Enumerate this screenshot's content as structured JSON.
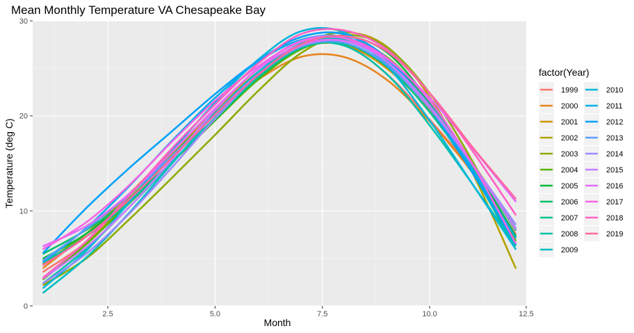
{
  "chart_data": {
    "type": "line",
    "title": "Mean Monthly Temperature VA Chesapeake Bay",
    "xlabel": "Month",
    "ylabel": "Temperature (deg C)",
    "xlim": [
      0.75,
      12.25
    ],
    "ylim": [
      0,
      30
    ],
    "x_ticks": [
      2.5,
      5.0,
      7.5,
      10.0,
      12.5
    ],
    "x_tick_labels": [
      "2.5",
      "5.0",
      "7.5",
      "10.0",
      "12.5"
    ],
    "y_ticks": [
      0,
      10,
      20,
      30
    ],
    "y_tick_labels": [
      "0",
      "10",
      "20",
      "30"
    ],
    "grid": true,
    "smoothed": true,
    "legend_title": "factor(Year)",
    "legend_position": "right",
    "x": [
      1,
      2,
      3,
      4,
      5,
      6,
      7,
      8,
      9,
      10,
      11,
      12
    ],
    "series": [
      {
        "name": "1999",
        "color": "#F8766D",
        "values": [
          3.6,
          6.7,
          11.1,
          15.9,
          20.5,
          24.6,
          27.3,
          27.5,
          24.4,
          19.6,
          14.2,
          7.6
        ]
      },
      {
        "name": "2000",
        "color": "#E7851E",
        "values": [
          4.0,
          7.6,
          11.8,
          16.3,
          20.3,
          23.8,
          26.2,
          26.2,
          23.8,
          19.4,
          14.0,
          7.3
        ]
      },
      {
        "name": "2001",
        "color": "#D09400",
        "values": [
          2.9,
          6.6,
          11.1,
          16.0,
          20.6,
          24.6,
          27.2,
          27.5,
          25.0,
          20.6,
          15.0,
          8.2
        ]
      },
      {
        "name": "2002",
        "color": "#B2A100",
        "values": [
          4.5,
          7.6,
          11.6,
          16.0,
          20.2,
          24.2,
          27.4,
          28.8,
          27.3,
          22.0,
          14.0,
          4.0
        ]
      },
      {
        "name": "2003",
        "color": "#8BAB00",
        "values": [
          2.2,
          5.0,
          9.1,
          13.5,
          18.0,
          22.6,
          26.6,
          28.5,
          27.2,
          22.4,
          15.2,
          6.4
        ]
      },
      {
        "name": "2004",
        "color": "#55B400",
        "values": [
          2.8,
          6.5,
          10.8,
          15.1,
          19.5,
          23.8,
          27.0,
          28.1,
          26.2,
          21.4,
          14.7,
          6.9
        ]
      },
      {
        "name": "2005",
        "color": "#00BA38",
        "values": [
          5.0,
          7.6,
          11.3,
          15.8,
          20.3,
          24.3,
          27.3,
          28.4,
          26.7,
          21.5,
          14.8,
          7.4
        ]
      },
      {
        "name": "2006",
        "color": "#00BE6C",
        "values": [
          5.5,
          8.0,
          11.2,
          15.2,
          19.6,
          24.0,
          27.3,
          28.1,
          26.0,
          21.3,
          14.9,
          8.0
        ]
      },
      {
        "name": "2007",
        "color": "#00C08E",
        "values": [
          4.6,
          7.3,
          10.9,
          15.2,
          19.7,
          24.0,
          27.1,
          27.6,
          25.2,
          20.4,
          14.0,
          6.0
        ]
      },
      {
        "name": "2008",
        "color": "#00C0AB",
        "values": [
          2.4,
          6.0,
          10.4,
          15.1,
          19.8,
          24.2,
          27.3,
          27.4,
          24.4,
          19.0,
          12.8,
          6.4
        ]
      },
      {
        "name": "2009",
        "color": "#00BDC4",
        "values": [
          1.4,
          5.1,
          9.8,
          15.0,
          20.2,
          24.6,
          27.6,
          28.0,
          25.6,
          20.8,
          14.2,
          6.5
        ]
      },
      {
        "name": "2010",
        "color": "#00B7DA",
        "values": [
          1.9,
          5.8,
          10.9,
          16.3,
          21.4,
          25.9,
          28.9,
          28.8,
          25.3,
          19.5,
          12.8,
          6.0
        ]
      },
      {
        "name": "2011",
        "color": "#00ADEB",
        "values": [
          4.6,
          8.2,
          12.6,
          17.4,
          21.9,
          25.7,
          28.0,
          28.3,
          25.9,
          21.0,
          14.4,
          7.2
        ]
      },
      {
        "name": "2012",
        "color": "#00A1F9",
        "values": [
          5.6,
          10.3,
          14.5,
          18.4,
          22.3,
          25.8,
          28.3,
          28.6,
          26.1,
          20.8,
          14.0,
          6.5
        ]
      },
      {
        "name": "2013",
        "color": "#619CFF",
        "values": [
          4.8,
          8.1,
          11.7,
          15.8,
          20.2,
          24.4,
          27.3,
          27.7,
          25.4,
          20.8,
          14.8,
          8.2
        ]
      },
      {
        "name": "2014",
        "color": "#9B8AFF",
        "values": [
          2.4,
          5.5,
          9.7,
          14.6,
          19.7,
          24.3,
          27.3,
          27.9,
          25.7,
          21.1,
          14.9,
          8.6
        ]
      },
      {
        "name": "2015",
        "color": "#C77CFF",
        "values": [
          2.9,
          6.2,
          10.4,
          15.4,
          20.6,
          25.0,
          27.9,
          28.2,
          25.7,
          20.9,
          14.9,
          8.1
        ]
      },
      {
        "name": "2016",
        "color": "#E46BF7",
        "values": [
          6.3,
          8.4,
          11.8,
          16.2,
          20.8,
          24.9,
          27.5,
          27.9,
          26.0,
          21.9,
          16.6,
          11.0
        ]
      },
      {
        "name": "2017",
        "color": "#F564E3",
        "values": [
          6.0,
          8.8,
          12.7,
          17.3,
          21.6,
          25.2,
          27.8,
          28.2,
          26.1,
          21.6,
          14.9,
          6.6
        ]
      },
      {
        "name": "2018",
        "color": "#FF61C3",
        "values": [
          3.0,
          6.8,
          11.6,
          16.6,
          21.2,
          25.5,
          28.6,
          29.0,
          27.0,
          22.4,
          16.3,
          9.6
        ]
      },
      {
        "name": "2019",
        "color": "#FF689F",
        "values": [
          4.3,
          7.3,
          11.2,
          15.6,
          20.1,
          24.3,
          27.5,
          28.4,
          26.8,
          22.4,
          16.7,
          11.3
        ]
      }
    ]
  }
}
